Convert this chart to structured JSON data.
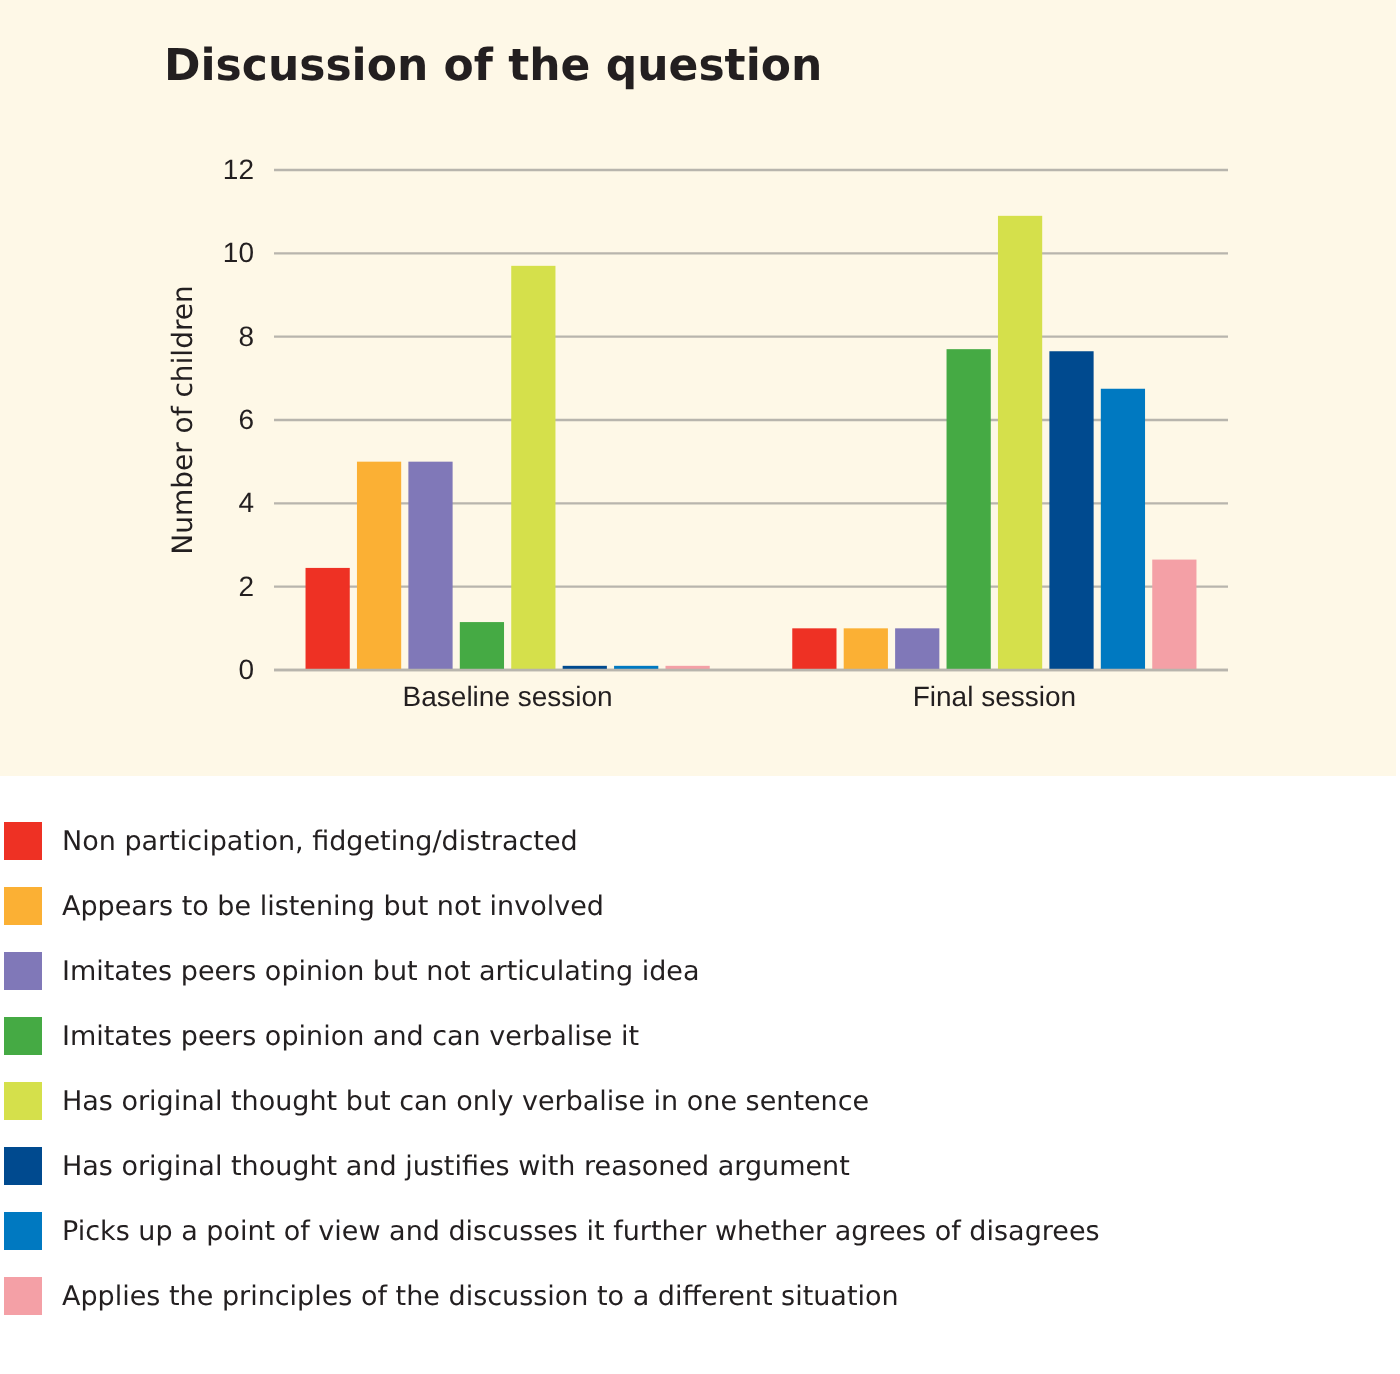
{
  "chart_data": {
    "type": "bar",
    "title": "Discussion of the question",
    "ylabel": "Number of children",
    "categories": [
      "Baseline session",
      "Final session"
    ],
    "series": [
      {
        "name": "Non participation, fidgeting/distracted",
        "color": "#ee3124",
        "values": [
          2.45,
          1.0
        ]
      },
      {
        "name": "Appears to be listening but not involved",
        "color": "#fbb034",
        "values": [
          5.0,
          1.0
        ]
      },
      {
        "name": "Imitates peers opinion but not articulating idea",
        "color": "#8078b8",
        "values": [
          5.0,
          1.0
        ]
      },
      {
        "name": "Imitates peers opinion and can verbalise it",
        "color": "#45aa44",
        "values": [
          1.15,
          7.7
        ]
      },
      {
        "name": "Has original thought but can only verbalise in one sentence",
        "color": "#d5e04b",
        "values": [
          9.7,
          10.9
        ]
      },
      {
        "name": "Has original thought and justifies with reasoned argument",
        "color": "#004a8f",
        "values": [
          0.1,
          7.65
        ]
      },
      {
        "name": "Picks up a point of view and discusses it further whether agrees of disagrees",
        "color": "#0079c1",
        "values": [
          0.1,
          6.75
        ]
      },
      {
        "name": "Applies the principles of the discussion to a different situation",
        "color": "#f4a0a6",
        "values": [
          0.1,
          2.65
        ]
      }
    ],
    "ylim": [
      0,
      12
    ],
    "yticks": [
      0,
      2,
      4,
      6,
      8,
      10,
      12
    ],
    "grid": "y",
    "legend": "bottom"
  }
}
